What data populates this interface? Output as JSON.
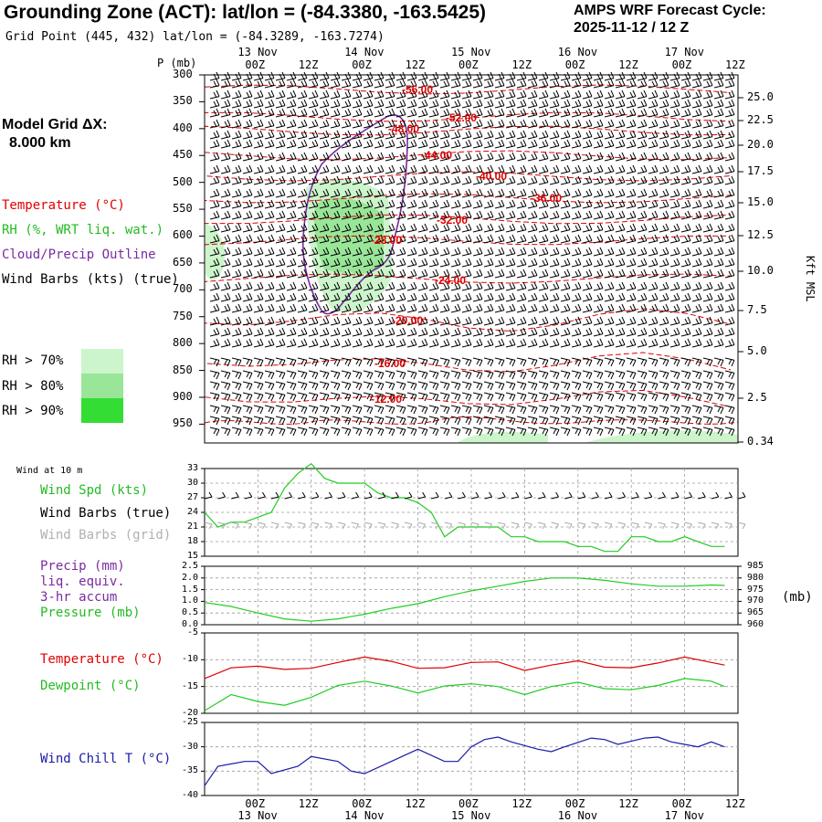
{
  "header": {
    "title": "Grounding Zone (ACT):  lat/lon = (-84.3380, -163.5425)",
    "subtitle": "Grid Point (445, 432) lat/lon = (-84.3289, -163.7274)",
    "cycle_line1": "AMPS WRF Forecast Cycle:",
    "cycle_line2": "2025-11-12 / 12  Z",
    "grid_spacing_line1": "Model Grid ΔX:",
    "grid_spacing_line2": "8.000 km"
  },
  "legend": {
    "temperature": "Temperature (°C)",
    "rh": "RH (%, WRT liq. wat.)",
    "cloud": "Cloud/Precip Outline",
    "barbs": "Wind Barbs (kts) (true)",
    "rh70": "RH > 70%",
    "rh80": "RH > 80%",
    "rh90": "RH > 90%"
  },
  "colors": {
    "temperature": "#e00000",
    "rh": "#22cc22",
    "cloud": "#7a2aa0",
    "rh70": "#ccf5cc",
    "rh80": "#99e699",
    "rh90": "#33dd33",
    "chill": "#1a1aa8",
    "barbs_grid": "#aaaaaa"
  },
  "time_axis": {
    "top_day_labels": [
      "13 Nov",
      "14 Nov",
      "15 Nov",
      "16 Nov",
      "17 Nov"
    ],
    "bottom_day_labels": [
      "13 Nov",
      "14 Nov",
      "15 Nov",
      "16 Nov",
      "17 Nov"
    ],
    "hour_labels": [
      "00Z",
      "12Z",
      "00Z",
      "12Z",
      "00Z",
      "12Z",
      "00Z",
      "12Z",
      "00Z",
      "12Z"
    ]
  },
  "chart_data": [
    {
      "type": "heatmap",
      "name": "time-pressure cross section",
      "ylabel": "P (mb)",
      "y2label": "Kft MSL",
      "pressure_ticks": [
        "300",
        "350",
        "400",
        "450",
        "500",
        "550",
        "600",
        "650",
        "700",
        "750",
        "800",
        "850",
        "900",
        "950"
      ],
      "height_ticks": [
        "25.0",
        "22.5",
        "20.0",
        "17.5",
        "15.0",
        "12.5",
        "10.0",
        "7.5",
        "5.0",
        "2.5",
        "0.34"
      ],
      "temperature_contour_labels": [
        "-56.00",
        "-52.00",
        "-48.00",
        "-44.00",
        "-40.00",
        "-36.00",
        "-32.00",
        "-28.00",
        "-24.00",
        "-20.00",
        "-16.00",
        "-12.00"
      ]
    },
    {
      "type": "line",
      "name": "Wind at 10 m",
      "label": "Wind at 10 m",
      "series_labels": [
        "Wind Spd (kts)",
        "Wind Barbs (true)",
        "Wind Barbs (grid)"
      ],
      "ylim": [
        15,
        33
      ],
      "yticks": [
        "33",
        "30",
        "27",
        "24",
        "21",
        "18",
        "15"
      ],
      "x_hours": [
        0,
        3,
        6,
        9,
        12,
        15,
        18,
        21,
        24,
        27,
        30,
        33,
        36,
        39,
        42,
        45,
        48,
        51,
        54,
        57,
        60,
        63,
        66,
        69,
        72,
        75,
        78,
        81,
        84,
        87,
        90,
        93,
        96,
        99,
        102,
        105,
        108,
        111,
        114,
        117
      ],
      "values": [
        24,
        21,
        22,
        22,
        23,
        24,
        29,
        32,
        34,
        31,
        30,
        30,
        30,
        28,
        27,
        27,
        26,
        24,
        19,
        21,
        21,
        21,
        21,
        19,
        19,
        18,
        18,
        18,
        17,
        17,
        16,
        16,
        19,
        19,
        18,
        18,
        19,
        18,
        17,
        17
      ]
    },
    {
      "type": "line",
      "name": "Precip and Pressure",
      "series_labels": [
        "Precip (mm)",
        "liq. equiv.",
        "3-hr accum",
        "Pressure (mb)"
      ],
      "y2label": "(mb)",
      "ylim": [
        0,
        2.5
      ],
      "yticks": [
        "2.5",
        "2.0",
        "1.5",
        "1.0",
        "0.5",
        "0.0"
      ],
      "y2lim": [
        960,
        985
      ],
      "y2ticks": [
        "985",
        "980",
        "975",
        "970",
        "965",
        "960"
      ],
      "x_hours": [
        0,
        6,
        12,
        18,
        24,
        30,
        36,
        42,
        48,
        54,
        60,
        66,
        72,
        78,
        84,
        90,
        96,
        102,
        108,
        114,
        117
      ],
      "pressure": [
        969.5,
        967.8,
        965,
        962.5,
        961.5,
        962.5,
        964.5,
        967,
        969,
        972,
        974.5,
        976.5,
        978.5,
        980,
        980,
        979,
        977.5,
        976.5,
        976.5,
        977,
        976.8
      ]
    },
    {
      "type": "line",
      "name": "Temperature and Dewpoint",
      "series_labels": [
        "Temperature (°C)",
        "Dewpoint (°C)"
      ],
      "ylim": [
        -20,
        -5
      ],
      "yticks": [
        "-5",
        "-10",
        "-15",
        "-20"
      ],
      "x_hours": [
        0,
        6,
        12,
        18,
        24,
        30,
        36,
        42,
        48,
        54,
        60,
        66,
        72,
        78,
        84,
        90,
        96,
        102,
        108,
        114,
        117
      ],
      "temperature": [
        -13.5,
        -11.5,
        -11.2,
        -11.8,
        -11.6,
        -10.5,
        -9.5,
        -10.3,
        -11.6,
        -11.5,
        -10.5,
        -10.4,
        -12,
        -11,
        -10.2,
        -11.4,
        -11.5,
        -10.6,
        -9.5,
        -10.5,
        -11
      ],
      "dewpoint": [
        -19.5,
        -16.5,
        -17.8,
        -18.5,
        -17,
        -14.8,
        -14,
        -14.9,
        -16.2,
        -14.9,
        -14.5,
        -15,
        -16.5,
        -15,
        -14.2,
        -15.4,
        -15.6,
        -14.8,
        -13.5,
        -14,
        -15
      ]
    },
    {
      "type": "line",
      "name": "Wind Chill",
      "series_labels": [
        "Wind Chill T (°C)"
      ],
      "ylim": [
        -40,
        -25
      ],
      "yticks": [
        "-25",
        "-30",
        "-35",
        "-40"
      ],
      "x_hours": [
        0,
        3,
        9,
        12,
        15,
        21,
        24,
        30,
        33,
        36,
        42,
        48,
        54,
        57,
        60,
        63,
        66,
        69,
        75,
        78,
        81,
        87,
        90,
        93,
        99,
        102,
        105,
        108,
        111,
        114,
        117
      ],
      "values": [
        -38,
        -34,
        -33,
        -33,
        -35.5,
        -34,
        -32,
        -33,
        -35,
        -35.5,
        -33,
        -30.5,
        -33,
        -33,
        -30,
        -28.5,
        -28,
        -29,
        -30.5,
        -31,
        -30,
        -28.2,
        -28.5,
        -29.5,
        -28.2,
        -28,
        -29,
        -29.5,
        -30,
        -29,
        -30
      ]
    }
  ]
}
